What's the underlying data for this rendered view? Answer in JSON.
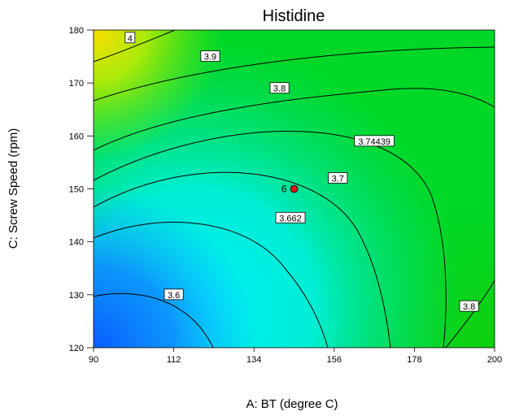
{
  "chart_data": {
    "type": "contour",
    "title": "Histidine",
    "xlabel": "A: BT (degree C)",
    "ylabel": "C: Screw Speed (rpm)",
    "xlim": [
      90,
      200
    ],
    "ylim": [
      120,
      180
    ],
    "x_ticks": [
      "90",
      "112",
      "134",
      "156",
      "178",
      "200"
    ],
    "y_ticks": [
      "120",
      "130",
      "140",
      "150",
      "160",
      "170",
      "180"
    ],
    "colormap": [
      "#0a64ff",
      "#00e6ff",
      "#00d828",
      "#ffe000"
    ],
    "contour_levels": [
      {
        "label": "3.6",
        "at": [
          112,
          130
        ]
      },
      {
        "label": "3.662",
        "at": [
          144,
          144.5
        ]
      },
      {
        "label": "3.7",
        "at": [
          157,
          152
        ]
      },
      {
        "label": "3.74439",
        "at": [
          167,
          159
        ]
      },
      {
        "label": "3.8",
        "at": [
          141,
          169
        ]
      },
      {
        "label": "3.9",
        "at": [
          122,
          175
        ]
      },
      {
        "label": "4",
        "at": [
          100,
          178.5
        ]
      },
      {
        "label": "3.8",
        "at": [
          193,
          127.8
        ]
      }
    ],
    "design_point": {
      "label": "6",
      "x": 145,
      "y": 150
    }
  }
}
